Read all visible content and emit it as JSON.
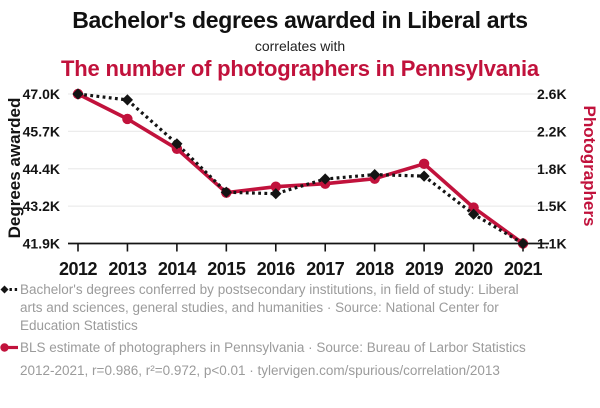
{
  "header": {
    "title": "Bachelor's degrees awarded in Liberal arts",
    "connector": "correlates with",
    "subtitle": "The number of photographers in Pennsylvania"
  },
  "colors": {
    "accent_red": "#c1123c",
    "series_black": "#141414",
    "axis": "#141414",
    "grid": "#ececec",
    "muted_text": "#9b9b9b",
    "background": "#ffffff"
  },
  "chart_data": {
    "type": "line",
    "title": "Bachelor's degrees awarded in Liberal arts correlates with The number of photographers in Pennsylvania",
    "x": [
      "2012",
      "2013",
      "2014",
      "2015",
      "2016",
      "2017",
      "2018",
      "2019",
      "2020",
      "2021"
    ],
    "grid": true,
    "legend_position": "below",
    "y_left": {
      "label": "Degrees awarded",
      "units": "K",
      "ticks": [
        "47.0K",
        "45.7K",
        "44.4K",
        "43.2K",
        "41.9K"
      ],
      "min": 41.9,
      "max": 47.0
    },
    "y_right": {
      "label": "Photographers",
      "units": "K",
      "ticks": [
        "2.6K",
        "2.2K",
        "1.8K",
        "1.5K",
        "1.1K"
      ],
      "min": 1.1,
      "max": 2.6
    },
    "series": [
      {
        "name": "Bachelor's degrees awarded in Liberal arts",
        "axis": "left",
        "color": "#141414",
        "marker": "diamond",
        "line": "dotted",
        "values": [
          47.0,
          46.8,
          45.3,
          43.65,
          43.6,
          44.1,
          44.25,
          44.2,
          42.9,
          41.9
        ]
      },
      {
        "name": "The number of photographers in Pennsylvania",
        "axis": "right",
        "color": "#c1123c",
        "marker": "circle",
        "line": "solid",
        "values": [
          2.6,
          2.35,
          2.05,
          1.61,
          1.67,
          1.7,
          1.75,
          1.9,
          1.46,
          1.1
        ]
      }
    ]
  },
  "legend": {
    "items": [
      {
        "marker": "black-diamond-dotted",
        "text": "Bachelor's degrees conferred by postsecondary institutions, in field of study: Liberal arts and sciences, general studies, and humanities · Source: National Center for Education Statistics"
      },
      {
        "marker": "red-circle-solid",
        "text": "BLS estimate of photographers in Pennsylvania · Source: Bureau of Larbor Statistics"
      }
    ],
    "footer": "2012-2021, r=0.986, r²=0.972, p<0.01 · tylervigen.com/spurious/correlation/2013"
  }
}
